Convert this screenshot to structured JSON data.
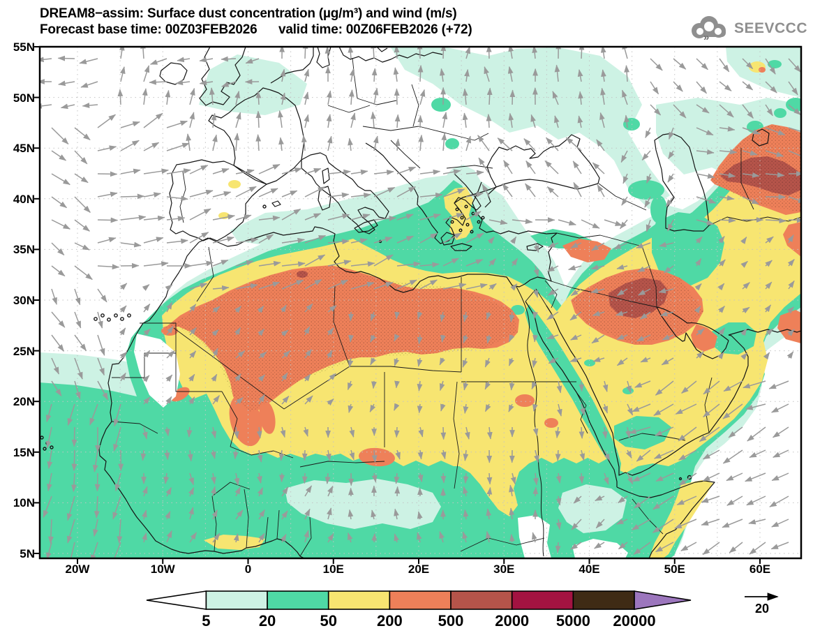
{
  "title": {
    "line1": "DREAM8−assim: Surface dust concentration (µg/m³) and wind (m/s)",
    "line2": "Forecast base time: 00Z03FEB2026      valid time: 00Z06FEB2026 (+72)"
  },
  "logo": {
    "text": "SEEVCCC"
  },
  "axes": {
    "lat_labels": [
      "55N",
      "50N",
      "45N",
      "40N",
      "35N",
      "30N",
      "25N",
      "20N",
      "15N",
      "10N",
      "5N"
    ],
    "lon_labels": [
      "20W",
      "10W",
      "0",
      "10E",
      "20E",
      "30E",
      "40E",
      "50E",
      "60E"
    ]
  },
  "colorbar": {
    "levels": [
      "5",
      "20",
      "50",
      "200",
      "500",
      "2000",
      "5000",
      "20000"
    ],
    "palette": [
      "#ffffff",
      "#cdf2e4",
      "#4fd9a5",
      "#f7e571",
      "#ee8059",
      "#b5544a",
      "#a31341",
      "#3f2b15",
      "#9c76bd"
    ]
  },
  "wind_reference": {
    "label": "20"
  },
  "chart_data": {
    "type": "map",
    "model": "DREAM8-assim",
    "variable": "Surface dust concentration",
    "units": "µg/m³",
    "wind_variable": "wind",
    "wind_units": "m/s",
    "forecast_base_time": "00Z03FEB2026",
    "valid_time": "00Z06FEB2026",
    "forecast_hour": "+72",
    "region": {
      "lat_range": [
        "5N",
        "55N"
      ],
      "lon_range": [
        "20W",
        "60E"
      ]
    },
    "contour_levels": [
      5,
      20,
      50,
      200,
      500,
      2000,
      5000,
      20000
    ],
    "palette": [
      "#ffffff",
      "#cdf2e4",
      "#4fd9a5",
      "#f7e571",
      "#ee8059",
      "#b5544a",
      "#a31341",
      "#3f2b15",
      "#9c76bd"
    ],
    "wind_reference_ms": 20,
    "gridline_spacing_deg": 5,
    "main_features": [
      "Broad 50-200 dust field over Sahara, Sahel and Arabian Peninsula",
      "200-500 bands over Atlas/N Algeria, Libya-Egypt, N Mali/Niger",
      "500-2000 maxima near Kuwait / Persian Gulf and east of Caspian Sea",
      "5-50 dust over tropical Atlantic, Gulf of Guinea, Mediterranean, E Europe fringes"
    ]
  }
}
